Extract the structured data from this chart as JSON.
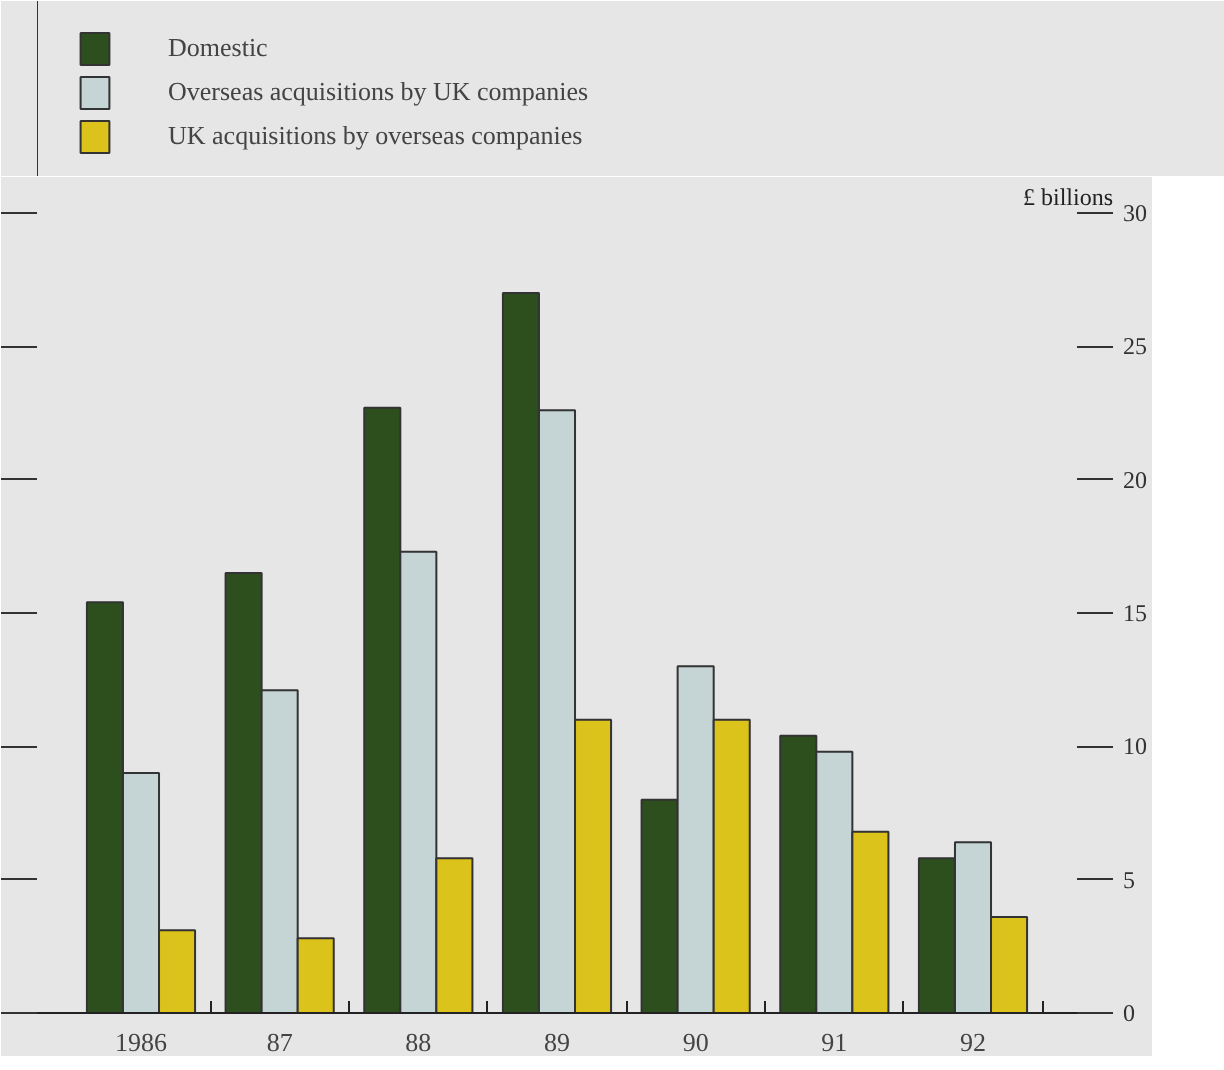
{
  "chart_data": {
    "type": "bar",
    "categories": [
      "1986",
      "87",
      "88",
      "89",
      "90",
      "91",
      "92"
    ],
    "series": [
      {
        "name": "Domestic",
        "color": "#2d4f1e",
        "values": [
          15.4,
          16.5,
          22.7,
          27.0,
          8.0,
          10.4,
          5.8
        ]
      },
      {
        "name": "Overseas acquisitions by UK companies",
        "color": "#c5d5d5",
        "values": [
          9.0,
          12.1,
          17.3,
          22.6,
          13.0,
          9.8,
          6.4
        ]
      },
      {
        "name": "UK acquisitions by overseas companies",
        "color": "#dcc31c",
        "values": [
          3.1,
          2.8,
          5.8,
          11.0,
          11.0,
          6.8,
          3.6
        ]
      }
    ],
    "ylim": [
      0,
      30
    ],
    "yticks": [
      0,
      5,
      10,
      15,
      20,
      25,
      30
    ],
    "ylabel": "£ billions",
    "grid": false,
    "legend": "top left"
  }
}
